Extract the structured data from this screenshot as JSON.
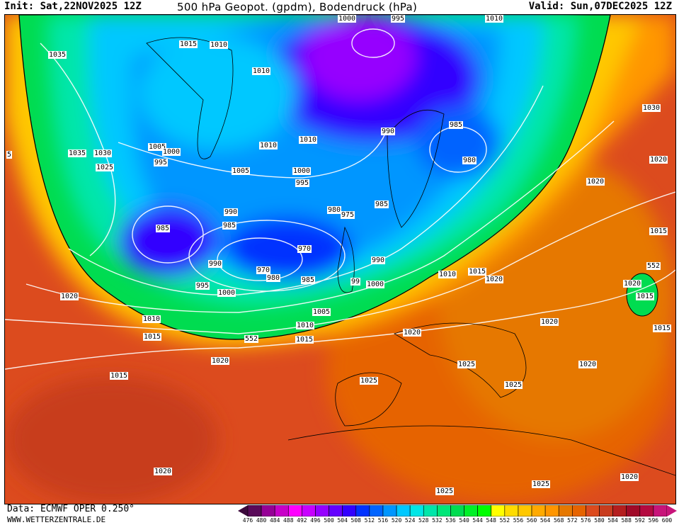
{
  "header": {
    "init": "Init: Sat,22NOV2025 12Z",
    "title": "500 hPa Geopot. (gpdm), Bodendruck (hPa)",
    "valid": "Valid: Sun,07DEC2025 12Z"
  },
  "footer": {
    "data_source": "Data: ECMWF OPER 0.250°",
    "website": "WWW.WETTERZENTRALE.DE"
  },
  "legend": {
    "ticks": [
      "476",
      "480",
      "484",
      "488",
      "492",
      "496",
      "500",
      "504",
      "508",
      "512",
      "516",
      "520",
      "524",
      "528",
      "532",
      "536",
      "540",
      "544",
      "548",
      "552",
      "556",
      "560",
      "564",
      "568",
      "572",
      "576",
      "580",
      "584",
      "588",
      "592",
      "596",
      "600"
    ],
    "colors": [
      "#3c0a3c",
      "#5a0a5a",
      "#960096",
      "#c800c8",
      "#ff00ff",
      "#c800ff",
      "#9600ff",
      "#6400ff",
      "#3200ff",
      "#0032ff",
      "#0064ff",
      "#0096ff",
      "#00c8ff",
      "#00e6e6",
      "#00e6aa",
      "#00e678",
      "#00dc50",
      "#00f028",
      "#00ff00",
      "#ffff00",
      "#ffdc00",
      "#ffc800",
      "#ffaa00",
      "#ff9600",
      "#e67800",
      "#e66400",
      "#dc4b1e",
      "#c83c1e",
      "#b41e1e",
      "#a00a28",
      "#b40a40",
      "#c8147a"
    ]
  },
  "map": {
    "isobar_labels": [
      "1035",
      "1015",
      "1010",
      "1010",
      "1000",
      "995",
      "1010",
      "1030",
      "1035",
      "1030",
      "1025",
      "1005",
      "1000",
      "995",
      "1010",
      "1010",
      "1005",
      "1000",
      "995",
      "990",
      "985",
      "980",
      "1020",
      "1020",
      "1015",
      "990",
      "985",
      "980",
      "975",
      "985",
      "985",
      "970",
      "970",
      "980",
      "985",
      "990",
      "995",
      "1000",
      "990",
      "99",
      "1000",
      "1010",
      "1015",
      "1020",
      "552",
      "1020",
      "1015",
      "1015",
      "1020",
      "1020",
      "1005",
      "1010",
      "1015",
      "552",
      "1010",
      "1015",
      "1020",
      "1020",
      "1015",
      "1025",
      "1025",
      "1025",
      "1020",
      "1020",
      "1020",
      "1025",
      "1025",
      "5"
    ]
  }
}
